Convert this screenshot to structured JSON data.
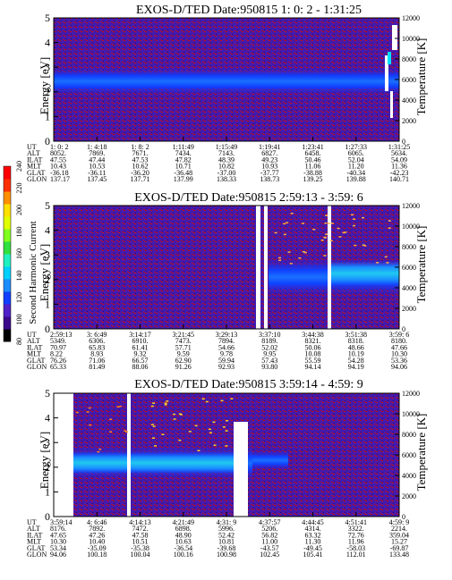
{
  "panels": [
    {
      "title": "EXOS-D/TED   Date:950815  1: 0: 2 - 1:31:25",
      "y_label": "Energy [eV]",
      "y2_label": "Temperature [K]",
      "y_ticks": [
        "0",
        "1",
        "2",
        "3",
        "4",
        "5"
      ],
      "y2_ticks": [
        "0",
        "2000",
        "4000",
        "6000",
        "8000",
        "10000",
        "12000"
      ],
      "band_center": 2.4,
      "rows": [
        {
          "name": "UT",
          "values": [
            "1: 0: 2",
            "1: 4:18",
            "1: 8: 2",
            "1:11:49",
            "1:15:49",
            "1:19:41",
            "1:23:41",
            "1:27:33",
            "1:31:25"
          ]
        },
        {
          "name": "ALT",
          "values": [
            "8052.",
            "7869.",
            "7671.",
            "7434.",
            "7143.",
            "6827.",
            "6458.",
            "6065.",
            "5634."
          ]
        },
        {
          "name": "ILAT",
          "values": [
            "47.55",
            "47.44",
            "47.53",
            "47.82",
            "48.39",
            "49.23",
            "50.46",
            "52.04",
            "54.09"
          ]
        },
        {
          "name": "MLT",
          "values": [
            "10.43",
            "10.53",
            "10.62",
            "10.71",
            "10.82",
            "10.93",
            "11.06",
            "11.20",
            "11.36"
          ]
        },
        {
          "name": "GLAT",
          "values": [
            "-36.18",
            "-36.11",
            "-36.20",
            "-36.48",
            "-37.00",
            "-37.77",
            "-38.88",
            "-40.34",
            "-42.23"
          ]
        },
        {
          "name": "GLON",
          "values": [
            "137.17",
            "137.45",
            "137.71",
            "137.99",
            "138.33",
            "138.73",
            "139.25",
            "139.88",
            "140.71"
          ]
        }
      ]
    },
    {
      "title": "EXOS-D/TED   Date:950815  2:59:13 - 3:59: 6",
      "y_label": "Energy [eV]",
      "y2_label": "Temperature [K]",
      "y_ticks": [
        "0",
        "1",
        "2",
        "3",
        "4",
        "5"
      ],
      "y2_ticks": [
        "0",
        "2000",
        "4000",
        "6000",
        "8000",
        "10000",
        "12000"
      ],
      "band_center": 2.5,
      "rows": [
        {
          "name": "UT",
          "values": [
            "2:59:13",
            "3: 6:49",
            "3:14:17",
            "3:21:45",
            "3:29:13",
            "3:37:10",
            "3:44:38",
            "3:51:38",
            "3:59: 6"
          ]
        },
        {
          "name": "ALT",
          "values": [
            "5349.",
            "6306.",
            "6910.",
            "7473.",
            "7894.",
            "8189.",
            "8321.",
            "8318.",
            "8180."
          ]
        },
        {
          "name": "ILAT",
          "values": [
            "70.97",
            "65.83",
            "61.41",
            "57.71",
            "54.66",
            "52.02",
            "50.06",
            "48.66",
            "47.66"
          ]
        },
        {
          "name": "MLT",
          "values": [
            "8.22",
            "8.93",
            "9.32",
            "9.59",
            "9.78",
            "9.95",
            "10.08",
            "10.19",
            "10.30"
          ]
        },
        {
          "name": "GLAT",
          "values": [
            "76.26",
            "71.06",
            "66.57",
            "62.90",
            "59.94",
            "57.43",
            "55.59",
            "54.28",
            "53.36"
          ]
        },
        {
          "name": "GLON",
          "values": [
            "65.33",
            "81.49",
            "88.06",
            "91.26",
            "92.93",
            "93.80",
            "94.14",
            "94.19",
            "94.06"
          ]
        }
      ]
    },
    {
      "title": "EXOS-D/TED   Date:950815  3:59:14 - 4:59: 9",
      "y_label": "Energy [eV]",
      "y2_label": "Temperature [K]",
      "y_ticks": [
        "0",
        "1",
        "2",
        "3",
        "4",
        "5"
      ],
      "y2_ticks": [
        "0",
        "2000",
        "4000",
        "6000",
        "8000",
        "10000",
        "12000"
      ],
      "band_center": 2.4,
      "rows": [
        {
          "name": "UT",
          "values": [
            "3:59:14",
            "4: 6:46",
            "4:14:13",
            "4:21:49",
            "4:31: 9",
            "4:37:57",
            "4:44:45",
            "4:51:41",
            "4:59: 9"
          ]
        },
        {
          "name": "ALT",
          "values": [
            "8176.",
            "7892.",
            "7472.",
            "6898.",
            "5996.",
            "5206.",
            "4314.",
            "3322.",
            "2214."
          ]
        },
        {
          "name": "ILAT",
          "values": [
            "47.65",
            "47.26",
            "47.58",
            "48.90",
            "52.42",
            "56.82",
            "63.32",
            "72.76",
            "359.04"
          ]
        },
        {
          "name": "MLT",
          "values": [
            "10.30",
            "10.40",
            "10.51",
            "10.63",
            "10.81",
            "11.00",
            "11.30",
            "11.96",
            "15.27"
          ]
        },
        {
          "name": "GLAT",
          "values": [
            "53.34",
            "-35.09",
            "-35.38",
            "-36.54",
            "-39.68",
            "-43.57",
            "-49.45",
            "-58.03",
            "-69.87"
          ]
        },
        {
          "name": "GLON",
          "values": [
            "94.06",
            "100.18",
            "100.04",
            "100.16",
            "100.98",
            "102.45",
            "105.41",
            "112.01",
            "133.48"
          ]
        }
      ]
    }
  ],
  "colorbar": {
    "label": "Second Harmonic Current",
    "ticks": [
      "80",
      "100",
      "120",
      "140",
      "160",
      "180",
      "200",
      "220",
      "240"
    ],
    "colors": [
      "#000000",
      "#3a0a8a",
      "#5020c8",
      "#1040ff",
      "#1a8cff",
      "#00d0ff",
      "#20f0c0",
      "#30e040",
      "#80ff20",
      "#e0ff00",
      "#ffe000",
      "#ff9000",
      "#ff3000",
      "#ff0000"
    ]
  },
  "chart_data": [
    {
      "type": "heatmap",
      "title": "EXOS-D/TED   Date:950815  1: 0: 2 - 1:31:25",
      "ylabel": "Energy [eV]",
      "y2label": "Temperature [K]",
      "ylim": [
        0,
        5
      ],
      "y2lim": [
        0,
        12000
      ],
      "x": [
        "1: 0: 2",
        "1: 4:18",
        "1: 8: 2",
        "1:11:49",
        "1:15:49",
        "1:19:41",
        "1:23:41",
        "1:27:33",
        "1:31:25"
      ]
    },
    {
      "type": "heatmap",
      "title": "EXOS-D/TED   Date:950815  2:59:13 - 3:59: 6",
      "ylabel": "Energy [eV]",
      "y2label": "Temperature [K]",
      "ylim": [
        0,
        5
      ],
      "y2lim": [
        0,
        12000
      ],
      "x": [
        "2:59:13",
        "3: 6:49",
        "3:14:17",
        "3:21:45",
        "3:29:13",
        "3:37:10",
        "3:44:38",
        "3:51:38",
        "3:59: 6"
      ]
    },
    {
      "type": "heatmap",
      "title": "EXOS-D/TED   Date:950815  3:59:14 - 4:59: 9",
      "ylabel": "Energy [eV]",
      "y2label": "Temperature [K]",
      "ylim": [
        0,
        5
      ],
      "y2lim": [
        0,
        12000
      ],
      "x": [
        "3:59:14",
        "4: 6:46",
        "4:14:13",
        "4:21:49",
        "4:31: 9",
        "4:37:57",
        "4:44:45",
        "4:51:41",
        "4:59: 9"
      ]
    }
  ]
}
